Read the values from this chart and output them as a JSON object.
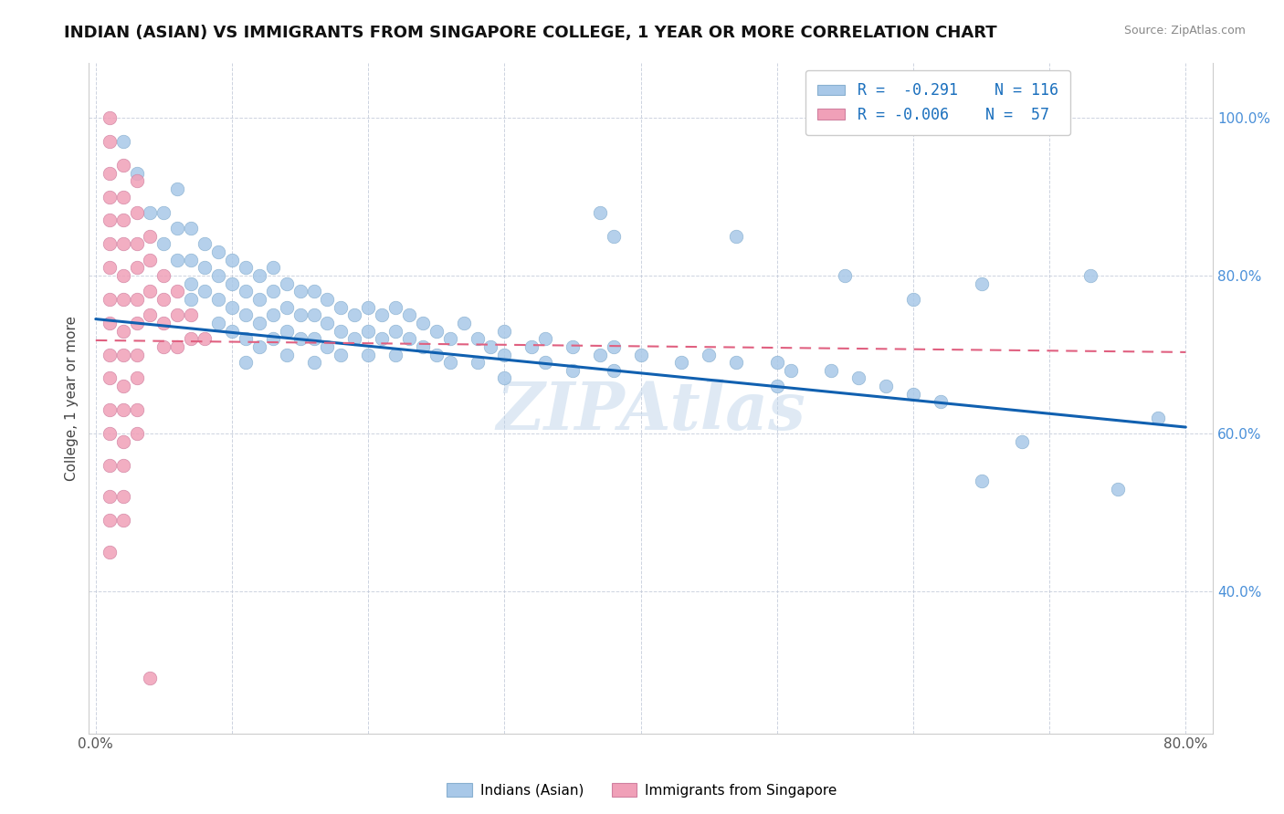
{
  "title": "INDIAN (ASIAN) VS IMMIGRANTS FROM SINGAPORE COLLEGE, 1 YEAR OR MORE CORRELATION CHART",
  "source_text": "Source: ZipAtlas.com",
  "ylabel": "College, 1 year or more",
  "xlim": [
    -0.005,
    0.82
  ],
  "ylim": [
    0.22,
    1.07
  ],
  "xticks": [
    0.0,
    0.1,
    0.2,
    0.3,
    0.4,
    0.5,
    0.6,
    0.7,
    0.8
  ],
  "xtick_labels": [
    "0.0%",
    "",
    "",
    "",
    "",
    "",
    "",
    "",
    "80.0%"
  ],
  "ytick_labels": [
    "40.0%",
    "60.0%",
    "80.0%",
    "100.0%"
  ],
  "yticks": [
    0.4,
    0.6,
    0.8,
    1.0
  ],
  "color_blue": "#a8c8e8",
  "color_pink": "#f0a0b8",
  "trend_blue": "#1060b0",
  "trend_pink": "#e06080",
  "watermark": "ZIPAtlas",
  "blue_scatter": [
    [
      0.02,
      0.97
    ],
    [
      0.03,
      0.93
    ],
    [
      0.04,
      0.88
    ],
    [
      0.05,
      0.88
    ],
    [
      0.05,
      0.84
    ],
    [
      0.06,
      0.91
    ],
    [
      0.06,
      0.86
    ],
    [
      0.06,
      0.82
    ],
    [
      0.07,
      0.86
    ],
    [
      0.07,
      0.82
    ],
    [
      0.07,
      0.79
    ],
    [
      0.07,
      0.77
    ],
    [
      0.08,
      0.84
    ],
    [
      0.08,
      0.81
    ],
    [
      0.08,
      0.78
    ],
    [
      0.09,
      0.83
    ],
    [
      0.09,
      0.8
    ],
    [
      0.09,
      0.77
    ],
    [
      0.09,
      0.74
    ],
    [
      0.1,
      0.82
    ],
    [
      0.1,
      0.79
    ],
    [
      0.1,
      0.76
    ],
    [
      0.1,
      0.73
    ],
    [
      0.11,
      0.81
    ],
    [
      0.11,
      0.78
    ],
    [
      0.11,
      0.75
    ],
    [
      0.11,
      0.72
    ],
    [
      0.11,
      0.69
    ],
    [
      0.12,
      0.8
    ],
    [
      0.12,
      0.77
    ],
    [
      0.12,
      0.74
    ],
    [
      0.12,
      0.71
    ],
    [
      0.13,
      0.81
    ],
    [
      0.13,
      0.78
    ],
    [
      0.13,
      0.75
    ],
    [
      0.13,
      0.72
    ],
    [
      0.14,
      0.79
    ],
    [
      0.14,
      0.76
    ],
    [
      0.14,
      0.73
    ],
    [
      0.14,
      0.7
    ],
    [
      0.15,
      0.78
    ],
    [
      0.15,
      0.75
    ],
    [
      0.15,
      0.72
    ],
    [
      0.16,
      0.78
    ],
    [
      0.16,
      0.75
    ],
    [
      0.16,
      0.72
    ],
    [
      0.16,
      0.69
    ],
    [
      0.17,
      0.77
    ],
    [
      0.17,
      0.74
    ],
    [
      0.17,
      0.71
    ],
    [
      0.18,
      0.76
    ],
    [
      0.18,
      0.73
    ],
    [
      0.18,
      0.7
    ],
    [
      0.19,
      0.75
    ],
    [
      0.19,
      0.72
    ],
    [
      0.2,
      0.76
    ],
    [
      0.2,
      0.73
    ],
    [
      0.2,
      0.7
    ],
    [
      0.21,
      0.75
    ],
    [
      0.21,
      0.72
    ],
    [
      0.22,
      0.76
    ],
    [
      0.22,
      0.73
    ],
    [
      0.22,
      0.7
    ],
    [
      0.23,
      0.75
    ],
    [
      0.23,
      0.72
    ],
    [
      0.24,
      0.74
    ],
    [
      0.24,
      0.71
    ],
    [
      0.25,
      0.73
    ],
    [
      0.25,
      0.7
    ],
    [
      0.26,
      0.72
    ],
    [
      0.26,
      0.69
    ],
    [
      0.27,
      0.74
    ],
    [
      0.28,
      0.72
    ],
    [
      0.28,
      0.69
    ],
    [
      0.29,
      0.71
    ],
    [
      0.3,
      0.73
    ],
    [
      0.3,
      0.7
    ],
    [
      0.3,
      0.67
    ],
    [
      0.32,
      0.71
    ],
    [
      0.33,
      0.72
    ],
    [
      0.33,
      0.69
    ],
    [
      0.35,
      0.71
    ],
    [
      0.35,
      0.68
    ],
    [
      0.37,
      0.7
    ],
    [
      0.38,
      0.71
    ],
    [
      0.38,
      0.68
    ],
    [
      0.4,
      0.7
    ],
    [
      0.43,
      0.69
    ],
    [
      0.45,
      0.7
    ],
    [
      0.47,
      0.69
    ],
    [
      0.5,
      0.69
    ],
    [
      0.5,
      0.66
    ],
    [
      0.51,
      0.68
    ],
    [
      0.54,
      0.68
    ],
    [
      0.56,
      0.67
    ],
    [
      0.58,
      0.66
    ],
    [
      0.6,
      0.65
    ],
    [
      0.62,
      0.64
    ],
    [
      0.65,
      0.54
    ],
    [
      0.68,
      0.59
    ],
    [
      0.75,
      0.53
    ],
    [
      0.78,
      0.62
    ],
    [
      0.37,
      0.88
    ],
    [
      0.38,
      0.85
    ],
    [
      0.47,
      0.85
    ],
    [
      0.55,
      0.8
    ],
    [
      0.6,
      0.77
    ],
    [
      0.65,
      0.79
    ],
    [
      0.73,
      0.8
    ]
  ],
  "pink_scatter": [
    [
      0.01,
      1.0
    ],
    [
      0.01,
      0.97
    ],
    [
      0.01,
      0.93
    ],
    [
      0.01,
      0.9
    ],
    [
      0.01,
      0.87
    ],
    [
      0.01,
      0.84
    ],
    [
      0.01,
      0.81
    ],
    [
      0.01,
      0.77
    ],
    [
      0.01,
      0.74
    ],
    [
      0.01,
      0.7
    ],
    [
      0.01,
      0.67
    ],
    [
      0.01,
      0.63
    ],
    [
      0.01,
      0.6
    ],
    [
      0.01,
      0.56
    ],
    [
      0.01,
      0.52
    ],
    [
      0.01,
      0.49
    ],
    [
      0.01,
      0.45
    ],
    [
      0.02,
      0.94
    ],
    [
      0.02,
      0.9
    ],
    [
      0.02,
      0.87
    ],
    [
      0.02,
      0.84
    ],
    [
      0.02,
      0.8
    ],
    [
      0.02,
      0.77
    ],
    [
      0.02,
      0.73
    ],
    [
      0.02,
      0.7
    ],
    [
      0.02,
      0.66
    ],
    [
      0.02,
      0.63
    ],
    [
      0.02,
      0.59
    ],
    [
      0.02,
      0.56
    ],
    [
      0.02,
      0.52
    ],
    [
      0.02,
      0.49
    ],
    [
      0.03,
      0.92
    ],
    [
      0.03,
      0.88
    ],
    [
      0.03,
      0.84
    ],
    [
      0.03,
      0.81
    ],
    [
      0.03,
      0.77
    ],
    [
      0.03,
      0.74
    ],
    [
      0.03,
      0.7
    ],
    [
      0.03,
      0.67
    ],
    [
      0.03,
      0.63
    ],
    [
      0.03,
      0.6
    ],
    [
      0.04,
      0.85
    ],
    [
      0.04,
      0.82
    ],
    [
      0.04,
      0.78
    ],
    [
      0.04,
      0.75
    ],
    [
      0.05,
      0.8
    ],
    [
      0.05,
      0.77
    ],
    [
      0.05,
      0.74
    ],
    [
      0.05,
      0.71
    ],
    [
      0.06,
      0.78
    ],
    [
      0.06,
      0.75
    ],
    [
      0.06,
      0.71
    ],
    [
      0.07,
      0.75
    ],
    [
      0.07,
      0.72
    ],
    [
      0.08,
      0.72
    ],
    [
      0.04,
      0.29
    ]
  ],
  "blue_trend_x": [
    0.0,
    0.8
  ],
  "blue_trend_y": [
    0.745,
    0.608
  ],
  "pink_trend_x": [
    0.0,
    0.8
  ],
  "pink_trend_y": [
    0.718,
    0.703
  ]
}
